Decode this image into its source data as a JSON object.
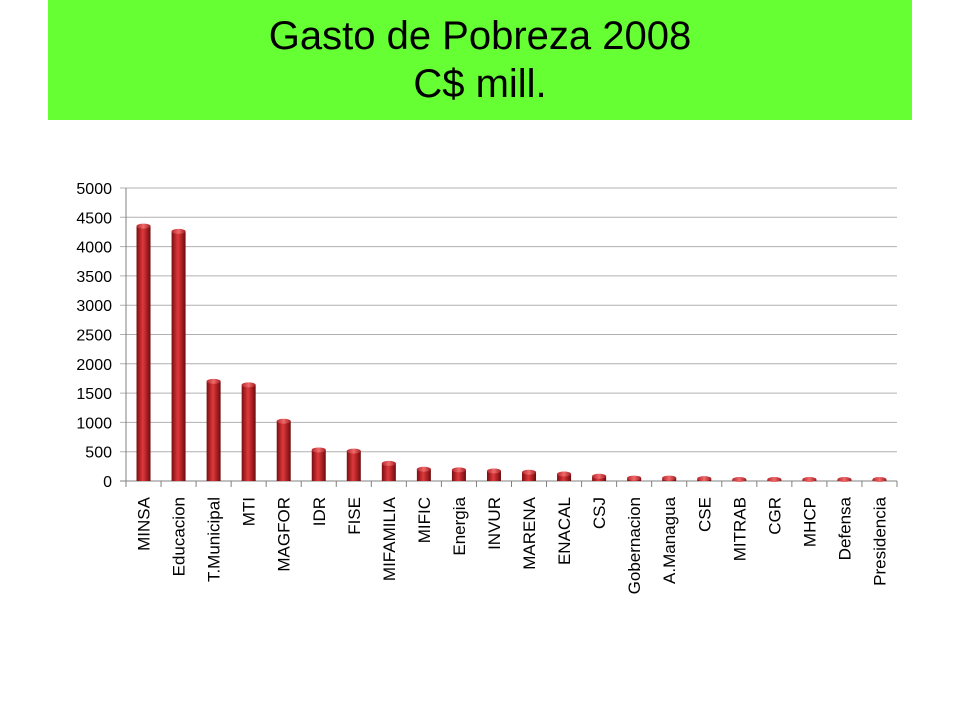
{
  "slide": {
    "title_line1": "Gasto de Pobreza 2008",
    "title_line2": "C$ mill.",
    "banner_color": "#66ff33"
  },
  "chart_data": {
    "type": "bar",
    "title": "",
    "xlabel": "",
    "ylabel": "",
    "ylim": [
      0,
      5000
    ],
    "yticks": [
      0,
      500,
      1000,
      1500,
      2000,
      2500,
      3000,
      3500,
      4000,
      4500,
      5000
    ],
    "grid": true,
    "bar_color": "#c0262a",
    "categories": [
      "MINSA",
      "Educacion",
      "T.Municipal",
      "MTI",
      "MAGFOR",
      "IDR",
      "FISE",
      "MIFAMILIA",
      "MIFIC",
      "Energia",
      "INVUR",
      "MARENA",
      "ENACAL",
      "CSJ",
      "Gobernacion",
      "A.Managua",
      "CSE",
      "MITRAB",
      "CGR",
      "MHCP",
      "Defensa",
      "Presidencia"
    ],
    "values": [
      4350,
      4260,
      1700,
      1640,
      1020,
      530,
      510,
      300,
      200,
      190,
      170,
      150,
      120,
      80,
      50,
      50,
      40,
      25,
      15,
      15,
      8,
      5
    ]
  }
}
